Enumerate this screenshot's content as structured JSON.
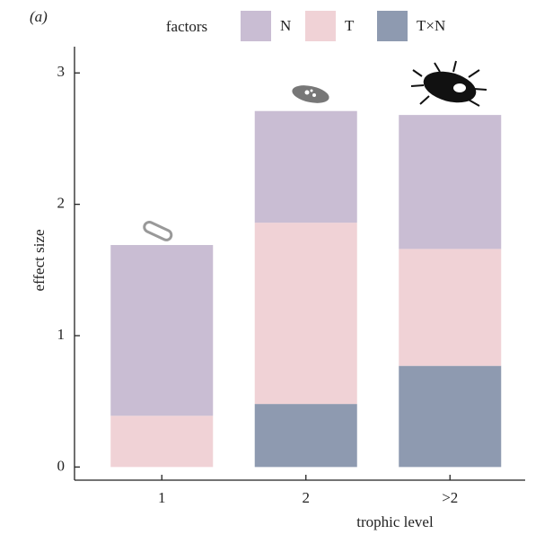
{
  "chart_data": {
    "type": "stacked-bar",
    "panel_label": "(a)",
    "legend_title": "factors",
    "xlabel": "trophic level",
    "ylabel": "effect size",
    "categories": [
      "1",
      "2",
      ">2"
    ],
    "series": [
      {
        "name": "N",
        "color": "#c9bdd3",
        "values": [
          1.3,
          0.85,
          1.02
        ]
      },
      {
        "name": "T",
        "color": "#f0d2d6",
        "values": [
          0.39,
          1.38,
          0.89
        ]
      },
      {
        "name": "T×N",
        "color": "#8e9ab0",
        "values": [
          0,
          0.48,
          0.77
        ]
      }
    ],
    "ylim": [
      -0.1,
      3.2
    ],
    "yticks": [
      0,
      1,
      2,
      3
    ]
  }
}
